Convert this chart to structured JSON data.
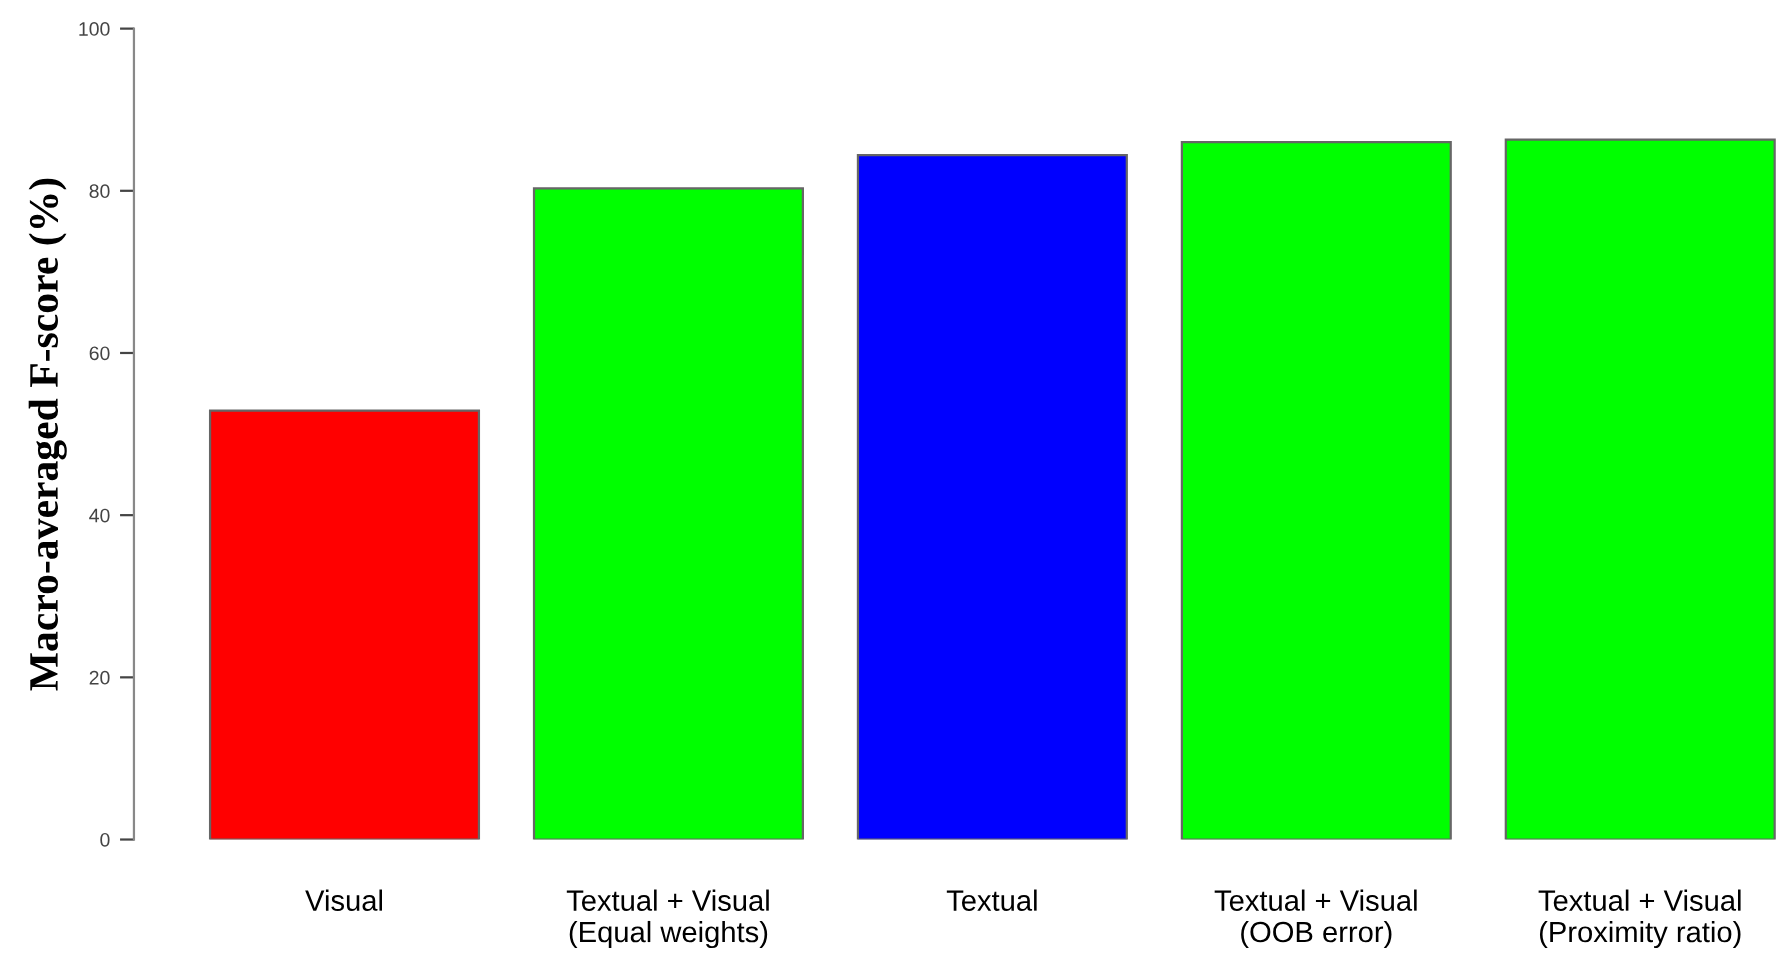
{
  "chart_data": {
    "type": "bar",
    "ylabel": "Macro-averaged F-score (%)",
    "categories": [
      "Visual",
      "Textual + Visual\n(Equal weights)",
      "Textual",
      "Textual + Visual\n(OOB error)",
      "Textual + Visual\n(Proximity ratio)"
    ],
    "values": [
      52.9,
      80.3,
      84.4,
      86.0,
      86.3
    ],
    "colors": [
      "#ff0000",
      "#00ff00",
      "#0000ff",
      "#00ff00",
      "#00ff00"
    ],
    "ylim": [
      0,
      100
    ],
    "yticks": [
      0,
      20,
      40,
      60,
      80,
      100
    ],
    "grid": false,
    "legend": false
  }
}
